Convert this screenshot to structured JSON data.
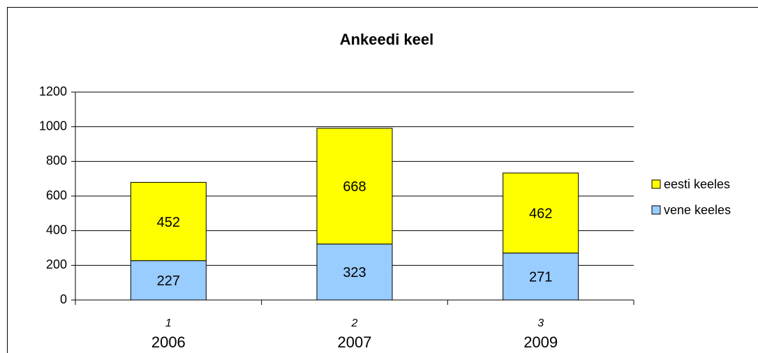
{
  "chart_data": {
    "type": "stacked_bar",
    "title": "Ankeedi keel",
    "categories": [
      "1",
      "2",
      "3"
    ],
    "annotations": [
      "2006",
      "2007",
      "2009"
    ],
    "series": [
      {
        "name": "vene keeles",
        "color": "#99ccff",
        "values": [
          227,
          323,
          271
        ]
      },
      {
        "name": "eesti keeles",
        "color": "#ffff00",
        "values": [
          452,
          668,
          462
        ]
      }
    ],
    "ylim": [
      0,
      1200
    ],
    "yticks": [
      0,
      200,
      400,
      600,
      800,
      1000,
      1200
    ],
    "grid": true,
    "legend": "right"
  }
}
